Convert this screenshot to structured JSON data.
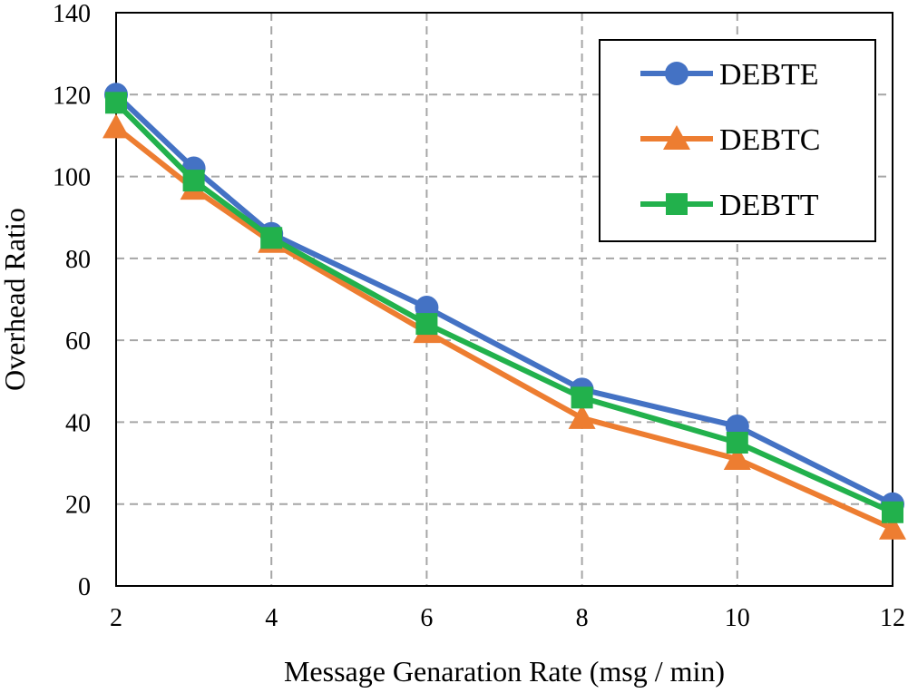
{
  "chart_data": {
    "type": "line",
    "title": "",
    "xlabel": "Message Genaration Rate (msg / min)",
    "ylabel": "Overhead Ratio",
    "x": [
      2,
      3,
      4,
      6,
      8,
      10,
      12
    ],
    "x_ticks": [
      2,
      4,
      6,
      8,
      10,
      12
    ],
    "x_tick_labels": [
      "2",
      "4",
      "6",
      "8",
      "10",
      "12"
    ],
    "xlim": [
      2,
      12
    ],
    "ylim": [
      0,
      140
    ],
    "y_ticks": [
      0,
      20,
      40,
      60,
      80,
      100,
      120,
      140
    ],
    "y_tick_labels": [
      "0",
      "20",
      "40",
      "60",
      "80",
      "100",
      "120",
      "140"
    ],
    "grid": true,
    "legend_position": "top-right",
    "series": [
      {
        "name": "DEBTE",
        "marker": "circle",
        "color": "#4472C4",
        "values": [
          120,
          102,
          86,
          68,
          48,
          39,
          20
        ]
      },
      {
        "name": "DEBTC",
        "marker": "triangle",
        "color": "#ED7D31",
        "values": [
          112,
          97,
          84,
          62,
          41,
          31,
          14
        ]
      },
      {
        "name": "DEBTT",
        "marker": "square",
        "color": "#22B14C",
        "values": [
          118,
          99,
          85,
          64,
          46,
          35,
          18
        ]
      }
    ]
  }
}
